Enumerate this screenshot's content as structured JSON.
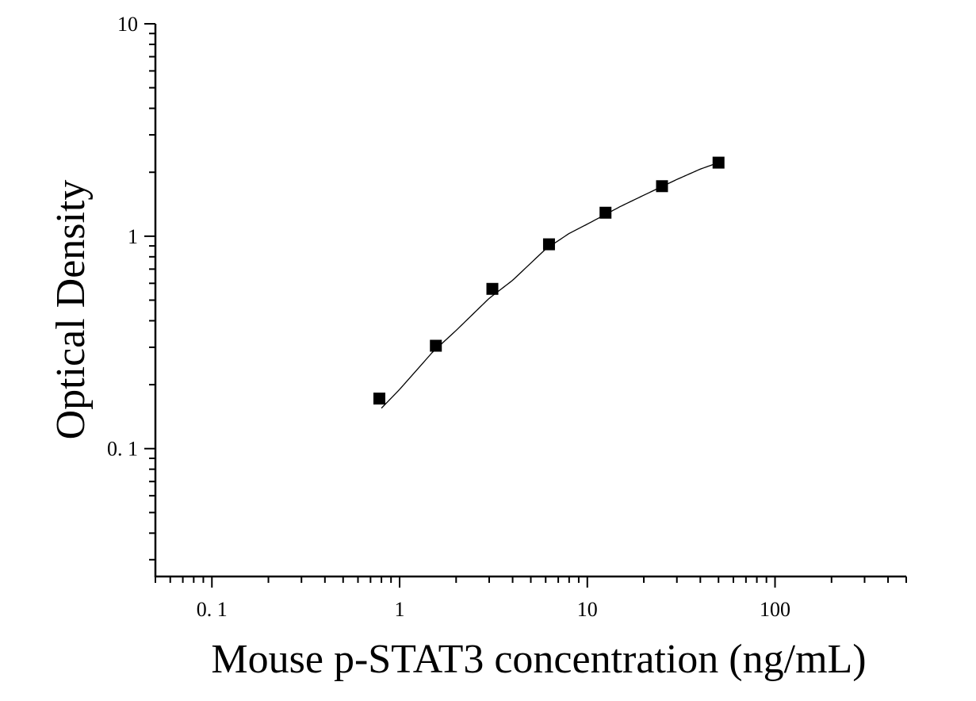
{
  "chart_data": {
    "type": "scatter",
    "xlabel": "Mouse p-STAT3 concentration (ng/mL)",
    "ylabel": "Optical Density",
    "x_scale": "log",
    "y_scale": "log",
    "xlim": [
      0.05,
      500
    ],
    "ylim": [
      0.025,
      10
    ],
    "x_ticks": [
      {
        "value": 0.1,
        "label": "0. 1"
      },
      {
        "value": 1,
        "label": "1"
      },
      {
        "value": 10,
        "label": "10"
      },
      {
        "value": 100,
        "label": "100"
      }
    ],
    "y_ticks": [
      {
        "value": 0.1,
        "label": "0. 1"
      },
      {
        "value": 1,
        "label": "1"
      },
      {
        "value": 10,
        "label": "10"
      }
    ],
    "grid": false,
    "legend": "none",
    "series": [
      {
        "marker": "square",
        "x": [
          0.78,
          1.56,
          3.12,
          6.25,
          12.5,
          25,
          50
        ],
        "y": [
          0.172,
          0.305,
          0.565,
          0.916,
          1.29,
          1.72,
          2.22
        ]
      }
    ],
    "fit_curve": {
      "x": [
        0.8,
        1.0,
        1.5,
        2.0,
        3.0,
        4.0,
        6.0,
        8.0,
        10.0,
        15.0,
        20.0,
        30.0,
        40.0,
        50.0
      ],
      "y": [
        0.155,
        0.19,
        0.285,
        0.36,
        0.51,
        0.62,
        0.87,
        1.03,
        1.14,
        1.38,
        1.56,
        1.85,
        2.07,
        2.22
      ]
    },
    "colors": {
      "axis": "#000000",
      "marker": "#000000",
      "curve": "#000000",
      "background": "#ffffff"
    }
  }
}
